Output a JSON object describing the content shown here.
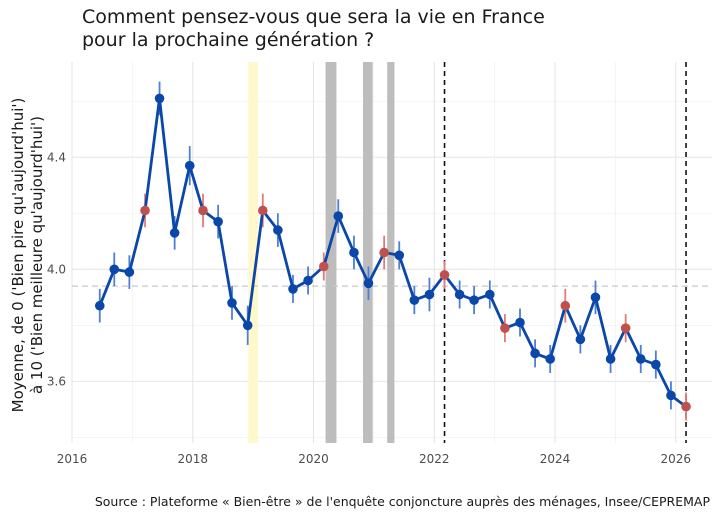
{
  "chart_data": {
    "type": "line",
    "title_lines": [
      "Comment pensez-vous que sera la vie en France",
      "pour la prochaine génération ?"
    ],
    "ylabel_lines": [
      "Moyenne, de 0 ('Bien pire qu'aujourd'hui')",
      "à 10 ('Bien meilleure qu'aujourd'hui')"
    ],
    "xlabel": "",
    "xlim": [
      2016,
      2026.6
    ],
    "ylim": [
      3.38,
      4.74
    ],
    "x_ticks": [
      2016,
      2018,
      2020,
      2022,
      2024,
      2026
    ],
    "y_ticks": [
      3.6,
      4.0,
      4.4
    ],
    "y_tick_labels": [
      "3.6",
      "4.0",
      "4.4"
    ],
    "reference_line": 3.94,
    "vertical_lines": [
      2022.17,
      2026.17
    ],
    "shaded_periods": [
      {
        "start": 2018.92,
        "end": 2019.08,
        "color": "#fff8cc"
      },
      {
        "start": 2020.2,
        "end": 2020.38,
        "color": "#bdbdbd"
      },
      {
        "start": 2020.82,
        "end": 2020.98,
        "color": "#bdbdbd"
      },
      {
        "start": 2021.22,
        "end": 2021.34,
        "color": "#bdbdbd"
      }
    ],
    "series": [
      {
        "name": "Moyenne",
        "line_color": "#0a47a8",
        "x": [
          2016.46,
          2016.7,
          2016.95,
          2017.21,
          2017.45,
          2017.7,
          2017.95,
          2018.17,
          2018.42,
          2018.65,
          2018.91,
          2019.16,
          2019.41,
          2019.66,
          2019.91,
          2020.17,
          2020.41,
          2020.67,
          2020.91,
          2021.17,
          2021.42,
          2021.67,
          2021.92,
          2022.17,
          2022.42,
          2022.66,
          2022.92,
          2023.17,
          2023.42,
          2023.67,
          2023.92,
          2024.17,
          2024.42,
          2024.67,
          2024.92,
          2025.17,
          2025.42,
          2025.67,
          2025.92,
          2026.17
        ],
        "values": [
          3.87,
          4.0,
          3.99,
          4.21,
          4.61,
          4.13,
          4.37,
          4.21,
          4.17,
          3.88,
          3.8,
          4.21,
          4.14,
          3.93,
          3.96,
          4.01,
          4.19,
          4.06,
          3.95,
          4.06,
          4.05,
          3.89,
          3.91,
          3.98,
          3.91,
          3.89,
          3.91,
          3.79,
          3.81,
          3.7,
          3.68,
          3.87,
          3.75,
          3.9,
          3.68,
          3.79,
          3.68,
          3.66,
          3.55,
          3.51
        ],
        "errors": [
          0.06,
          0.06,
          0.06,
          0.06,
          0.06,
          0.06,
          0.07,
          0.06,
          0.06,
          0.06,
          0.07,
          0.06,
          0.06,
          0.05,
          0.05,
          0.05,
          0.06,
          0.06,
          0.06,
          0.06,
          0.05,
          0.05,
          0.06,
          0.05,
          0.05,
          0.05,
          0.05,
          0.05,
          0.05,
          0.05,
          0.05,
          0.06,
          0.05,
          0.06,
          0.05,
          0.05,
          0.05,
          0.05,
          0.05,
          0.05
        ],
        "point_colors": [
          "#0a47a8",
          "#0a47a8",
          "#0a47a8",
          "#c0504d",
          "#0a47a8",
          "#0a47a8",
          "#0a47a8",
          "#c0504d",
          "#0a47a8",
          "#0a47a8",
          "#0a47a8",
          "#c0504d",
          "#0a47a8",
          "#0a47a8",
          "#0a47a8",
          "#c0504d",
          "#0a47a8",
          "#0a47a8",
          "#0a47a8",
          "#c0504d",
          "#0a47a8",
          "#0a47a8",
          "#0a47a8",
          "#c0504d",
          "#0a47a8",
          "#0a47a8",
          "#0a47a8",
          "#c0504d",
          "#0a47a8",
          "#0a47a8",
          "#0a47a8",
          "#c0504d",
          "#0a47a8",
          "#0a47a8",
          "#0a47a8",
          "#c0504d",
          "#0a47a8",
          "#0a47a8",
          "#0a47a8",
          "#c0504d"
        ]
      }
    ],
    "error_bar_color": "#4d7fd6",
    "error_bar_color_alt": "#e07c73",
    "grid": true
  },
  "source": "Source : Plateforme « Bien-être » de l'enquête conjoncture auprès des ménages, Insee/CEPREMAP"
}
